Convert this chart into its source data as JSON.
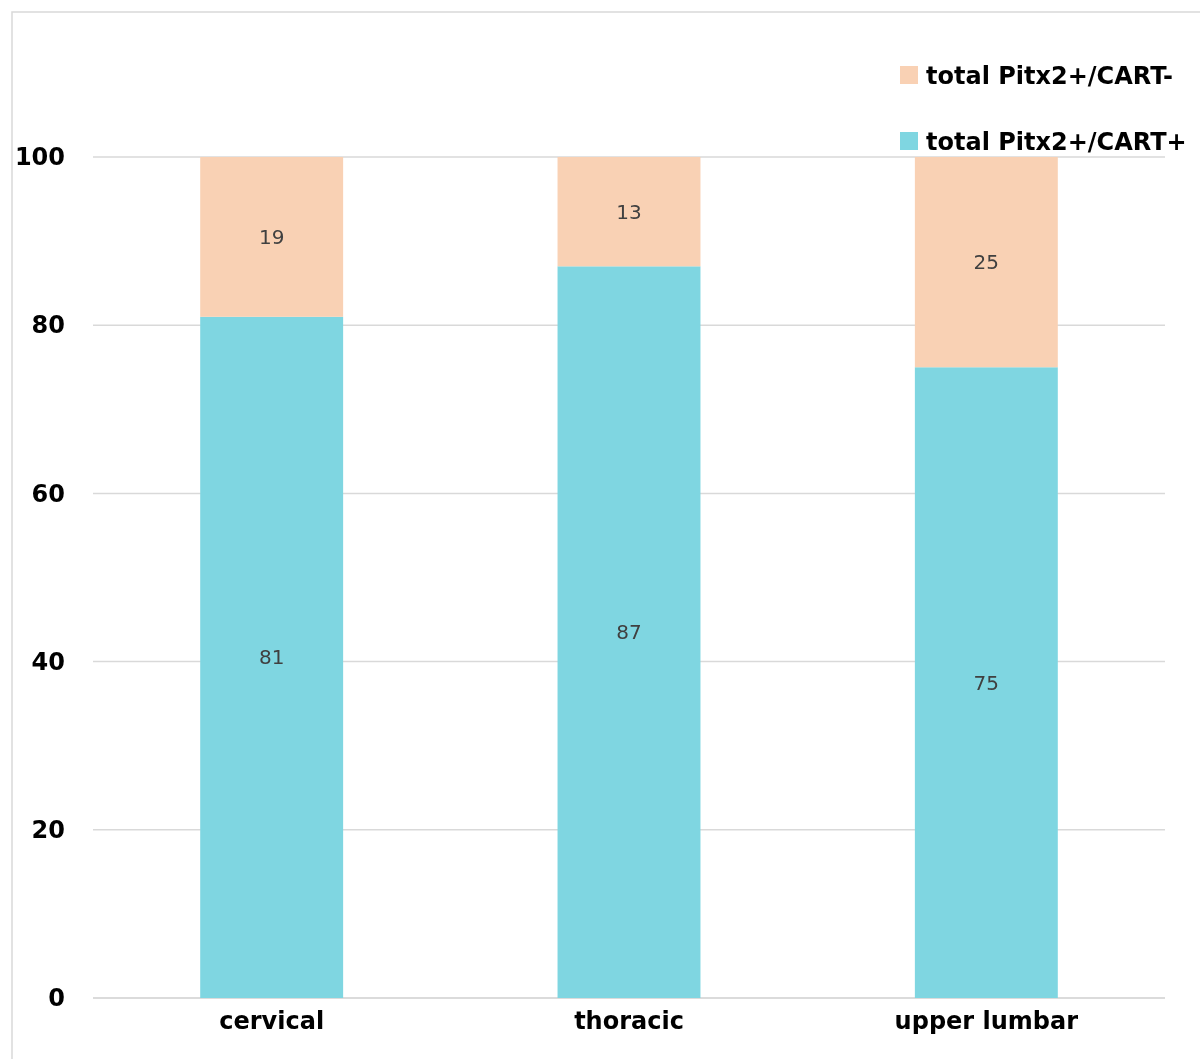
{
  "chart_data": {
    "type": "bar",
    "stacked": true,
    "categories": [
      "cervical",
      "thoracic",
      "upper lumbar"
    ],
    "series": [
      {
        "name": "total Pitx2+/CART+",
        "color": "#7fd6e1",
        "values": [
          81,
          87,
          75
        ]
      },
      {
        "name": "total Pitx2+/CART-",
        "color": "#f9d1b4",
        "values": [
          19,
          13,
          25
        ]
      }
    ],
    "ylim": [
      0,
      100
    ],
    "yticks": [
      0,
      20,
      40,
      60,
      80,
      100
    ],
    "grid": "y",
    "legend": "top right",
    "data_labels": true
  }
}
